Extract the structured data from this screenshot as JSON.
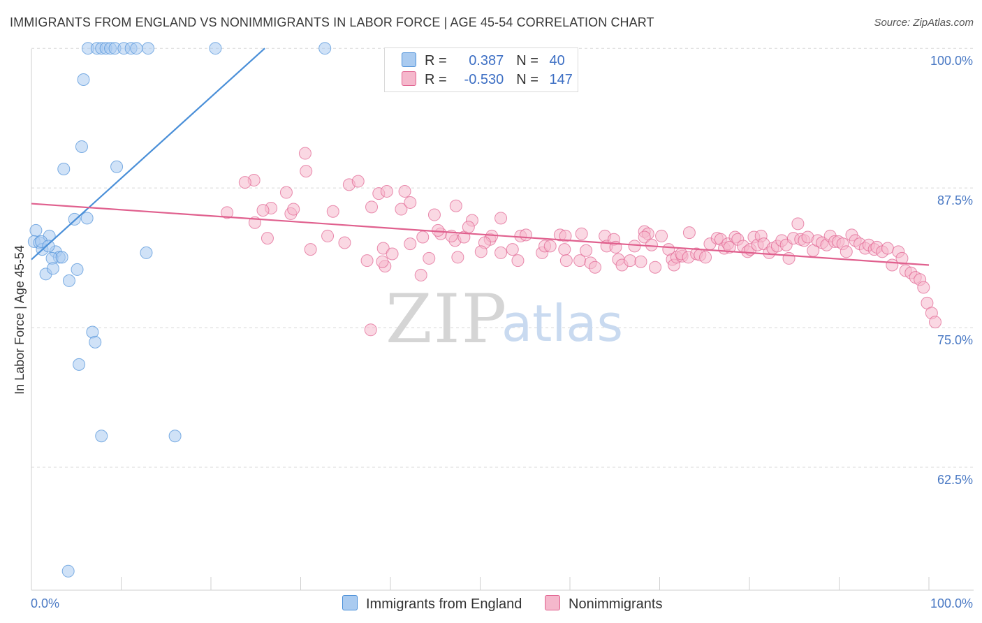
{
  "title": "IMMIGRANTS FROM ENGLAND VS NONIMMIGRANTS IN LABOR FORCE | AGE 45-54 CORRELATION CHART",
  "source": "Source: ZipAtlas.com",
  "watermark": {
    "zip": "ZIP",
    "atlas": "atlas"
  },
  "colors": {
    "blue": "#4a8fd8",
    "blue_fill": "#aacbf0",
    "pink": "#e0608e",
    "pink_fill": "#f5b8cc",
    "tick": "#4a79c4"
  },
  "legend": {
    "rows": [
      {
        "r_label": "R =",
        "r_value": "0.387",
        "n_label": "N =",
        "n_value": "40"
      },
      {
        "r_label": "R =",
        "r_value": "-0.530",
        "n_label": "N =",
        "n_value": "147"
      }
    ]
  },
  "bottom_legend": {
    "blue": "Immigrants from England",
    "pink": "Nonimmigrants"
  },
  "chart_data": {
    "type": "scatter",
    "title": "IMMIGRANTS FROM ENGLAND VS NONIMMIGRANTS IN LABOR FORCE | AGE 45-54 CORRELATION CHART",
    "xlabel": "",
    "ylabel": "In Labor Force | Age 45-54",
    "xlim": [
      0,
      100
    ],
    "ylim": [
      51.5,
      101.2
    ],
    "x_tick_labels": [
      "0.0%",
      "100.0%"
    ],
    "y_ticks": [
      100,
      87.5,
      75,
      62.5
    ],
    "y_tick_labels": [
      "100.0%",
      "87.5%",
      "75.0%",
      "62.5%"
    ],
    "grid": "horizontal dashed",
    "legend_position": "top-center",
    "series": [
      {
        "name": "Immigrants from England",
        "r": 0.387,
        "n": 40,
        "trend": {
          "x": [
            0,
            26
          ],
          "y": [
            81.1,
            100.0
          ]
        },
        "points": [
          [
            6.3,
            100
          ],
          [
            7.3,
            100
          ],
          [
            7.8,
            100
          ],
          [
            8.3,
            100
          ],
          [
            8.8,
            100
          ],
          [
            9.3,
            100
          ],
          [
            10.3,
            100
          ],
          [
            11.1,
            100
          ],
          [
            11.7,
            100
          ],
          [
            13,
            100
          ],
          [
            20.5,
            100
          ],
          [
            32.7,
            100
          ],
          [
            5.8,
            97.2
          ],
          [
            5.6,
            91.2
          ],
          [
            3.6,
            89.2
          ],
          [
            9.5,
            89.4
          ],
          [
            4.8,
            84.7
          ],
          [
            6.2,
            84.8
          ],
          [
            0.5,
            83.7
          ],
          [
            2,
            83.2
          ],
          [
            0.3,
            82.7
          ],
          [
            0.9,
            82.6
          ],
          [
            1.2,
            82
          ],
          [
            2.7,
            81.8
          ],
          [
            3.1,
            81.3
          ],
          [
            2.3,
            81.2
          ],
          [
            3.4,
            81.3
          ],
          [
            12.8,
            81.7
          ],
          [
            1.6,
            79.8
          ],
          [
            2.4,
            80.3
          ],
          [
            5.1,
            80.2
          ],
          [
            4.2,
            79.2
          ],
          [
            6.8,
            74.6
          ],
          [
            7.1,
            73.7
          ],
          [
            5.3,
            71.7
          ],
          [
            7.8,
            65.3
          ],
          [
            16,
            65.3
          ],
          [
            4.1,
            53.2
          ],
          [
            1.1,
            82.7
          ],
          [
            1.9,
            82.3
          ]
        ]
      },
      {
        "name": "Nonimmigrants",
        "r": -0.53,
        "n": 147,
        "trend": {
          "x": [
            0,
            100
          ],
          "y": [
            86.1,
            80.6
          ]
        },
        "points": [
          [
            30.5,
            90.6
          ],
          [
            30.6,
            89
          ],
          [
            24.8,
            88.2
          ],
          [
            23.8,
            88
          ],
          [
            35.4,
            87.8
          ],
          [
            36.4,
            88.1
          ],
          [
            28.4,
            87.1
          ],
          [
            38.7,
            87
          ],
          [
            39.6,
            87.2
          ],
          [
            41.6,
            87.2
          ],
          [
            26.7,
            85.7
          ],
          [
            21.8,
            85.3
          ],
          [
            25.8,
            85.5
          ],
          [
            28.9,
            85.2
          ],
          [
            29.2,
            85.6
          ],
          [
            33.6,
            85.4
          ],
          [
            37.9,
            85.8
          ],
          [
            41.2,
            85.6
          ],
          [
            42.2,
            86.2
          ],
          [
            44.9,
            85.1
          ],
          [
            47.3,
            85.9
          ],
          [
            24.9,
            84.4
          ],
          [
            49.1,
            84.6
          ],
          [
            52.3,
            84.8
          ],
          [
            26.3,
            83
          ],
          [
            33,
            83.2
          ],
          [
            34.9,
            82.6
          ],
          [
            31.1,
            82
          ],
          [
            37.4,
            81
          ],
          [
            39.2,
            82.1
          ],
          [
            40.2,
            81.6
          ],
          [
            39.4,
            80.5
          ],
          [
            42.2,
            82.5
          ],
          [
            43.6,
            83.1
          ],
          [
            44.3,
            81.2
          ],
          [
            43.4,
            79.7
          ],
          [
            45.6,
            83.4
          ],
          [
            45.3,
            83.7
          ],
          [
            47.2,
            82.8
          ],
          [
            47.5,
            81.3
          ],
          [
            48.2,
            83.1
          ],
          [
            48.7,
            84
          ],
          [
            51.1,
            82.9
          ],
          [
            51.3,
            83.2
          ],
          [
            50.5,
            82.6
          ],
          [
            50.1,
            81.8
          ],
          [
            52.3,
            81.7
          ],
          [
            53.6,
            82
          ],
          [
            54.5,
            83.2
          ],
          [
            55.1,
            83.3
          ],
          [
            54.2,
            81
          ],
          [
            56.9,
            81.7
          ],
          [
            57.2,
            82.3
          ],
          [
            57.8,
            82.3
          ],
          [
            58.9,
            83.3
          ],
          [
            59.5,
            83.2
          ],
          [
            59.4,
            82
          ],
          [
            59.6,
            81
          ],
          [
            61.1,
            81
          ],
          [
            61.3,
            83.4
          ],
          [
            61.8,
            81.9
          ],
          [
            62.3,
            80.8
          ],
          [
            62.8,
            80.4
          ],
          [
            63.9,
            83.2
          ],
          [
            64.1,
            82.3
          ],
          [
            64.9,
            82.9
          ],
          [
            65.1,
            82.2
          ],
          [
            65.4,
            81.1
          ],
          [
            65.8,
            80.6
          ],
          [
            66.7,
            81
          ],
          [
            67.2,
            82.3
          ],
          [
            67.9,
            80.9
          ],
          [
            68.3,
            83.6
          ],
          [
            68.7,
            83.4
          ],
          [
            68.3,
            83.1
          ],
          [
            69.1,
            82.4
          ],
          [
            69.5,
            80.4
          ],
          [
            70.2,
            83.2
          ],
          [
            71,
            82
          ],
          [
            71.4,
            81.1
          ],
          [
            71.6,
            80.6
          ],
          [
            71.9,
            81.3
          ],
          [
            72.5,
            81.4
          ],
          [
            72.4,
            81.6
          ],
          [
            73.2,
            81.3
          ],
          [
            73.3,
            83.5
          ],
          [
            74.1,
            81.6
          ],
          [
            74.5,
            81.5
          ],
          [
            75.1,
            81.3
          ],
          [
            75.6,
            82.5
          ],
          [
            76.4,
            83
          ],
          [
            76.8,
            82.9
          ],
          [
            77.2,
            82.1
          ],
          [
            77.6,
            82.5
          ],
          [
            77.8,
            82.2
          ],
          [
            78.4,
            83.1
          ],
          [
            78.7,
            82.9
          ],
          [
            79.3,
            82.3
          ],
          [
            79.8,
            81.8
          ],
          [
            80.1,
            82
          ],
          [
            80.5,
            83.1
          ],
          [
            80.9,
            82.4
          ],
          [
            81.3,
            83.2
          ],
          [
            81.6,
            82.5
          ],
          [
            82.2,
            81.7
          ],
          [
            82.6,
            82.1
          ],
          [
            83.1,
            82.3
          ],
          [
            83.6,
            82.8
          ],
          [
            84.1,
            82.4
          ],
          [
            84.4,
            81.2
          ],
          [
            84.9,
            83
          ],
          [
            85.4,
            84.3
          ],
          [
            85.7,
            82.9
          ],
          [
            86.1,
            82.8
          ],
          [
            86.5,
            83.1
          ],
          [
            87.1,
            81.9
          ],
          [
            87.6,
            82.8
          ],
          [
            88.1,
            82.6
          ],
          [
            88.6,
            82.4
          ],
          [
            89,
            83.2
          ],
          [
            89.5,
            82.7
          ],
          [
            89.9,
            82.7
          ],
          [
            90.4,
            82.5
          ],
          [
            90.8,
            81.8
          ],
          [
            91.4,
            83.3
          ],
          [
            91.8,
            82.8
          ],
          [
            92.3,
            82.5
          ],
          [
            92.9,
            82.1
          ],
          [
            93.3,
            82.4
          ],
          [
            93.9,
            82
          ],
          [
            94.2,
            82.2
          ],
          [
            94.8,
            81.8
          ],
          [
            95.4,
            82.1
          ],
          [
            95.9,
            80.6
          ],
          [
            96.6,
            81.8
          ],
          [
            97,
            81.2
          ],
          [
            97.4,
            80.1
          ],
          [
            98,
            79.9
          ],
          [
            98.5,
            79.5
          ],
          [
            99,
            79.3
          ],
          [
            99.4,
            78.6
          ],
          [
            99.8,
            77.2
          ],
          [
            100.3,
            76.3
          ],
          [
            100.7,
            75.5
          ],
          [
            37.8,
            74.8
          ],
          [
            39.1,
            80.9
          ],
          [
            46.8,
            83.2
          ]
        ]
      }
    ]
  }
}
